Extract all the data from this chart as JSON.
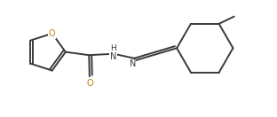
{
  "bg_color": "#ffffff",
  "line_color": "#3a3a3a",
  "atom_color_O": "#b8860b",
  "atom_color_N": "#3a3a3a",
  "figsize": [
    3.12,
    1.32
  ],
  "dpi": 100,
  "lw": 1.4,
  "xlim": [
    0,
    10.5
  ],
  "ylim": [
    0,
    4.5
  ]
}
